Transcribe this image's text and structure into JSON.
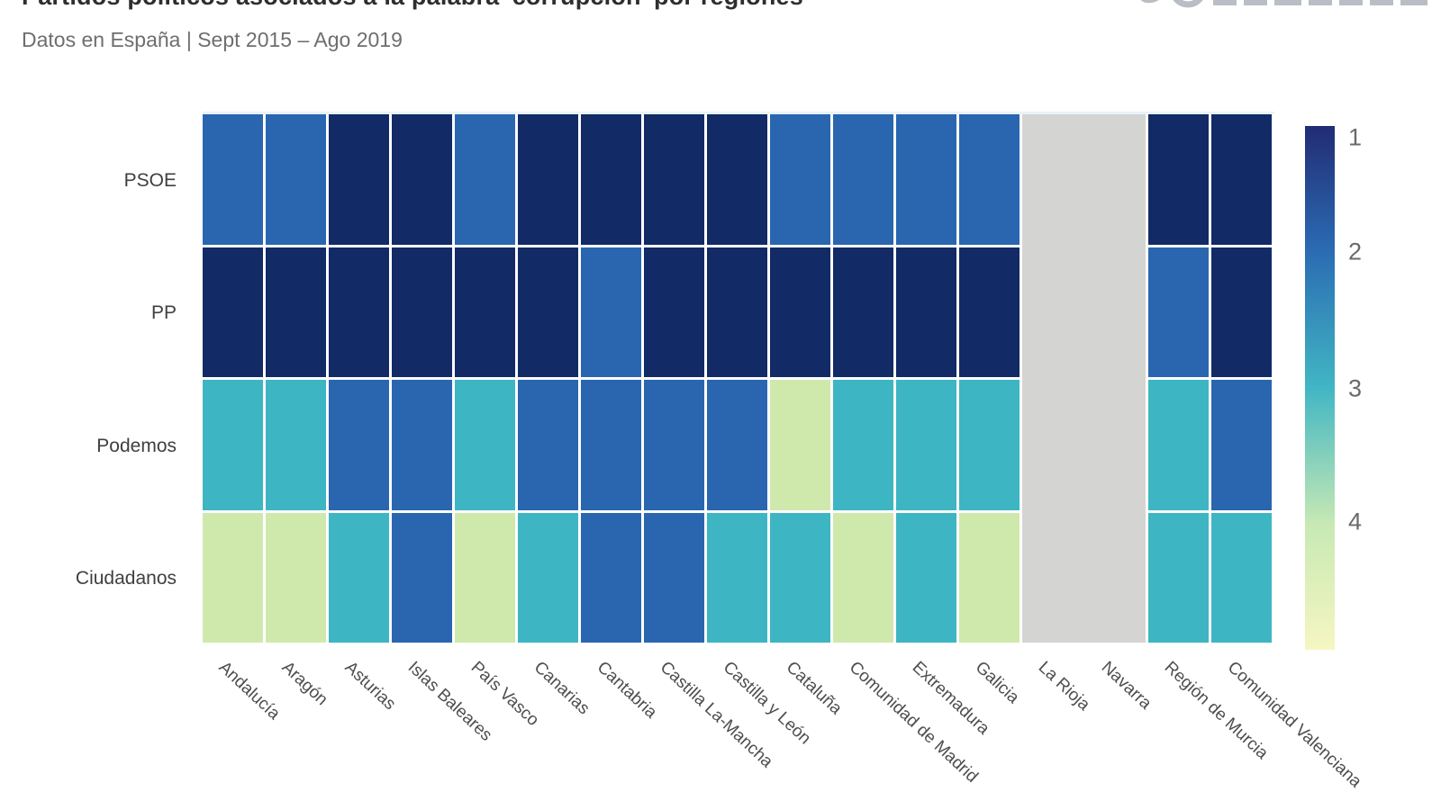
{
  "header": {
    "title": "Partidos políticos asociados a la palabra 'corrupción' por regiones",
    "subtitle": "Datos en España | Sept 2015 – Ago 2019"
  },
  "brand": {
    "logo_color": "#b9bec5"
  },
  "chart_data": {
    "type": "heatmap",
    "title": "Partidos políticos asociados a la palabra 'corrupción' por regiones",
    "subtitle": "Datos en España | Sept 2015 – Ago 2019",
    "rows": [
      "PSOE",
      "PP",
      "Podemos",
      "Ciudadanos"
    ],
    "columns": [
      "Andalucía",
      "Aragón",
      "Asturias",
      "Islas Baleares",
      "País Vasco",
      "Canarias",
      "Cantabria",
      "Castilla La-Mancha",
      "Castilla y León",
      "Cataluña",
      "Comunidad de Madrid",
      "Extremadura",
      "Galicia",
      "La Rioja",
      "Navarra",
      "Región de Murcia",
      "Comunidad Valenciana"
    ],
    "values": [
      [
        2,
        2,
        1,
        1,
        2,
        1,
        1,
        1,
        1,
        2,
        2,
        2,
        2,
        null,
        null,
        1,
        1
      ],
      [
        1,
        1,
        1,
        1,
        1,
        1,
        2,
        1,
        1,
        1,
        1,
        1,
        1,
        null,
        null,
        2,
        1
      ],
      [
        3,
        3,
        2,
        2,
        3,
        2,
        2,
        2,
        2,
        4,
        3,
        3,
        3,
        null,
        null,
        3,
        2
      ],
      [
        4,
        4,
        3,
        2,
        4,
        3,
        2,
        2,
        3,
        3,
        4,
        3,
        4,
        null,
        null,
        3,
        3
      ]
    ],
    "value_meaning": "rank of association, 1 = most associated",
    "no_data_columns": [
      "La Rioja",
      "Navarra"
    ],
    "legend_position": "right",
    "grid": "white gaps between cells",
    "colorbar": {
      "ticks": [
        "1",
        "2",
        "3",
        "4"
      ],
      "rank_colors": {
        "1": "#122a66",
        "2": "#2a66b0",
        "3": "#3eb5c2",
        "4": "#cfe9ad"
      },
      "no_data_color": "#d4d5d2",
      "gradient_top_to_bottom": [
        "#212c74",
        "#2b6cb3",
        "#41b6c4",
        "#c7e9b4",
        "#f6f6c2"
      ]
    }
  }
}
